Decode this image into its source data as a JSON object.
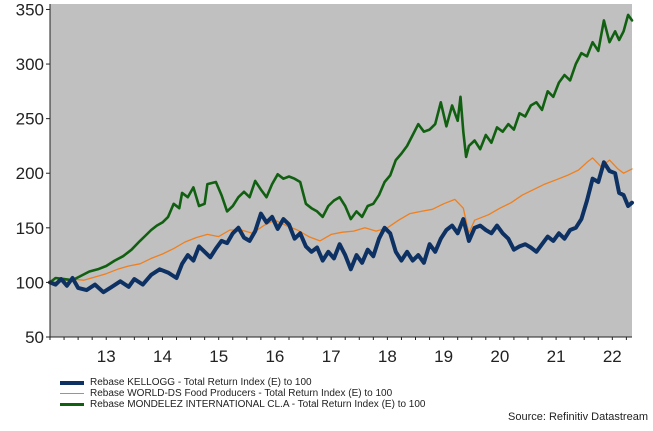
{
  "chart_data": {
    "type": "line",
    "title": "",
    "xlabel": "",
    "ylabel": "",
    "x_tick_labels": [
      "13",
      "14",
      "15",
      "16",
      "17",
      "18",
      "19",
      "20",
      "21",
      "22"
    ],
    "x_tick_values": [
      2013,
      2014,
      2015,
      2016,
      2017,
      2018,
      2019,
      2020,
      2021,
      2022
    ],
    "xlim": [
      2012.5,
      2022.85
    ],
    "y_ticks": [
      50,
      100,
      150,
      200,
      250,
      300,
      350
    ],
    "ylim": [
      50,
      355
    ],
    "grid": false,
    "background": "#c0c0c0",
    "legend_position": "bottom-left",
    "series": [
      {
        "name": "Rebase KELLOGG - Total Return Index (E) to 100",
        "color": "#0d3163",
        "width": 4,
        "points": [
          [
            2012.5,
            100
          ],
          [
            2012.6,
            98
          ],
          [
            2012.7,
            103
          ],
          [
            2012.8,
            97
          ],
          [
            2012.9,
            104
          ],
          [
            2013.0,
            95
          ],
          [
            2013.15,
            93
          ],
          [
            2013.3,
            98
          ],
          [
            2013.45,
            91
          ],
          [
            2013.6,
            96
          ],
          [
            2013.75,
            101
          ],
          [
            2013.9,
            96
          ],
          [
            2014.0,
            103
          ],
          [
            2014.15,
            98
          ],
          [
            2014.3,
            107
          ],
          [
            2014.45,
            112
          ],
          [
            2014.6,
            109
          ],
          [
            2014.75,
            104
          ],
          [
            2014.85,
            117
          ],
          [
            2014.95,
            125
          ],
          [
            2015.05,
            120
          ],
          [
            2015.15,
            133
          ],
          [
            2015.25,
            128
          ],
          [
            2015.35,
            123
          ],
          [
            2015.45,
            131
          ],
          [
            2015.55,
            138
          ],
          [
            2015.65,
            136
          ],
          [
            2015.75,
            145
          ],
          [
            2015.85,
            150
          ],
          [
            2015.95,
            141
          ],
          [
            2016.05,
            138
          ],
          [
            2016.15,
            147
          ],
          [
            2016.25,
            163
          ],
          [
            2016.35,
            155
          ],
          [
            2016.45,
            160
          ],
          [
            2016.55,
            149
          ],
          [
            2016.65,
            158
          ],
          [
            2016.75,
            153
          ],
          [
            2016.85,
            140
          ],
          [
            2016.95,
            145
          ],
          [
            2017.05,
            133
          ],
          [
            2017.15,
            128
          ],
          [
            2017.25,
            132
          ],
          [
            2017.35,
            120
          ],
          [
            2017.45,
            128
          ],
          [
            2017.55,
            122
          ],
          [
            2017.65,
            135
          ],
          [
            2017.75,
            125
          ],
          [
            2017.85,
            112
          ],
          [
            2017.95,
            125
          ],
          [
            2018.05,
            118
          ],
          [
            2018.15,
            130
          ],
          [
            2018.25,
            124
          ],
          [
            2018.35,
            140
          ],
          [
            2018.45,
            150
          ],
          [
            2018.55,
            145
          ],
          [
            2018.65,
            128
          ],
          [
            2018.75,
            120
          ],
          [
            2018.85,
            128
          ],
          [
            2018.95,
            120
          ],
          [
            2019.05,
            125
          ],
          [
            2019.15,
            118
          ],
          [
            2019.25,
            135
          ],
          [
            2019.35,
            128
          ],
          [
            2019.45,
            140
          ],
          [
            2019.55,
            148
          ],
          [
            2019.65,
            152
          ],
          [
            2019.75,
            145
          ],
          [
            2019.85,
            158
          ],
          [
            2019.95,
            138
          ],
          [
            2020.05,
            150
          ],
          [
            2020.15,
            152
          ],
          [
            2020.25,
            148
          ],
          [
            2020.35,
            145
          ],
          [
            2020.45,
            152
          ],
          [
            2020.55,
            145
          ],
          [
            2020.65,
            140
          ],
          [
            2020.75,
            130
          ],
          [
            2020.85,
            133
          ],
          [
            2020.95,
            135
          ],
          [
            2021.05,
            132
          ],
          [
            2021.15,
            128
          ],
          [
            2021.25,
            135
          ],
          [
            2021.35,
            142
          ],
          [
            2021.45,
            138
          ],
          [
            2021.55,
            145
          ],
          [
            2021.65,
            140
          ],
          [
            2021.75,
            148
          ],
          [
            2021.85,
            150
          ],
          [
            2021.95,
            158
          ],
          [
            2022.05,
            175
          ],
          [
            2022.15,
            195
          ],
          [
            2022.25,
            192
          ],
          [
            2022.35,
            210
          ],
          [
            2022.45,
            202
          ],
          [
            2022.55,
            200
          ],
          [
            2022.62,
            182
          ],
          [
            2022.7,
            180
          ],
          [
            2022.78,
            170
          ],
          [
            2022.85,
            173
          ]
        ]
      },
      {
        "name": "Rebase WORLD-DS Food Producers - Total Return Index (E) to 100",
        "color": "#f07f1c",
        "width": 1.3,
        "points": [
          [
            2012.5,
            100
          ],
          [
            2012.7,
            101
          ],
          [
            2012.9,
            103
          ],
          [
            2013.1,
            102
          ],
          [
            2013.3,
            105
          ],
          [
            2013.5,
            108
          ],
          [
            2013.7,
            112
          ],
          [
            2013.9,
            115
          ],
          [
            2014.1,
            117
          ],
          [
            2014.3,
            122
          ],
          [
            2014.5,
            126
          ],
          [
            2014.7,
            131
          ],
          [
            2014.9,
            137
          ],
          [
            2015.1,
            141
          ],
          [
            2015.3,
            144
          ],
          [
            2015.5,
            142
          ],
          [
            2015.7,
            148
          ],
          [
            2015.9,
            148
          ],
          [
            2016.1,
            145
          ],
          [
            2016.3,
            152
          ],
          [
            2016.5,
            157
          ],
          [
            2016.7,
            152
          ],
          [
            2016.9,
            148
          ],
          [
            2017.1,
            142
          ],
          [
            2017.3,
            138
          ],
          [
            2017.5,
            144
          ],
          [
            2017.7,
            146
          ],
          [
            2017.9,
            147
          ],
          [
            2018.1,
            150
          ],
          [
            2018.3,
            147
          ],
          [
            2018.5,
            150
          ],
          [
            2018.7,
            157
          ],
          [
            2018.9,
            163
          ],
          [
            2019.1,
            165
          ],
          [
            2019.3,
            167
          ],
          [
            2019.5,
            172
          ],
          [
            2019.7,
            176
          ],
          [
            2019.85,
            168
          ],
          [
            2019.95,
            145
          ],
          [
            2020.05,
            157
          ],
          [
            2020.3,
            162
          ],
          [
            2020.5,
            168
          ],
          [
            2020.7,
            173
          ],
          [
            2020.9,
            180
          ],
          [
            2021.1,
            185
          ],
          [
            2021.3,
            190
          ],
          [
            2021.5,
            194
          ],
          [
            2021.7,
            198
          ],
          [
            2021.9,
            203
          ],
          [
            2022.05,
            210
          ],
          [
            2022.15,
            214
          ],
          [
            2022.3,
            206
          ],
          [
            2022.45,
            212
          ],
          [
            2022.6,
            204
          ],
          [
            2022.7,
            200
          ],
          [
            2022.85,
            204
          ]
        ]
      },
      {
        "name": "Rebase MONDELEZ INTERNATIONAL CL.A - Total Return Index (E) to 100",
        "color": "#116011",
        "width": 2.6,
        "points": [
          [
            2012.5,
            100
          ],
          [
            2012.6,
            104
          ],
          [
            2012.75,
            103
          ],
          [
            2012.9,
            102
          ],
          [
            2013.05,
            106
          ],
          [
            2013.2,
            110
          ],
          [
            2013.35,
            112
          ],
          [
            2013.5,
            115
          ],
          [
            2013.65,
            120
          ],
          [
            2013.8,
            124
          ],
          [
            2013.95,
            130
          ],
          [
            2014.1,
            138
          ],
          [
            2014.2,
            143
          ],
          [
            2014.3,
            148
          ],
          [
            2014.4,
            152
          ],
          [
            2014.5,
            155
          ],
          [
            2014.6,
            160
          ],
          [
            2014.7,
            172
          ],
          [
            2014.8,
            168
          ],
          [
            2014.85,
            182
          ],
          [
            2014.95,
            178
          ],
          [
            2015.05,
            187
          ],
          [
            2015.15,
            170
          ],
          [
            2015.25,
            172
          ],
          [
            2015.3,
            190
          ],
          [
            2015.45,
            192
          ],
          [
            2015.55,
            180
          ],
          [
            2015.65,
            165
          ],
          [
            2015.75,
            170
          ],
          [
            2015.85,
            178
          ],
          [
            2015.95,
            183
          ],
          [
            2016.05,
            178
          ],
          [
            2016.15,
            193
          ],
          [
            2016.25,
            185
          ],
          [
            2016.35,
            178
          ],
          [
            2016.45,
            190
          ],
          [
            2016.55,
            199
          ],
          [
            2016.65,
            195
          ],
          [
            2016.75,
            197
          ],
          [
            2016.85,
            195
          ],
          [
            2016.95,
            192
          ],
          [
            2017.05,
            172
          ],
          [
            2017.15,
            168
          ],
          [
            2017.25,
            165
          ],
          [
            2017.35,
            160
          ],
          [
            2017.45,
            170
          ],
          [
            2017.55,
            175
          ],
          [
            2017.65,
            178
          ],
          [
            2017.75,
            170
          ],
          [
            2017.85,
            158
          ],
          [
            2017.95,
            165
          ],
          [
            2018.05,
            160
          ],
          [
            2018.15,
            170
          ],
          [
            2018.25,
            172
          ],
          [
            2018.35,
            180
          ],
          [
            2018.45,
            192
          ],
          [
            2018.55,
            198
          ],
          [
            2018.65,
            212
          ],
          [
            2018.75,
            218
          ],
          [
            2018.85,
            225
          ],
          [
            2018.95,
            235
          ],
          [
            2019.05,
            245
          ],
          [
            2019.15,
            238
          ],
          [
            2019.25,
            240
          ],
          [
            2019.35,
            245
          ],
          [
            2019.45,
            265
          ],
          [
            2019.55,
            243
          ],
          [
            2019.65,
            262
          ],
          [
            2019.75,
            248
          ],
          [
            2019.8,
            270
          ],
          [
            2019.85,
            238
          ],
          [
            2019.9,
            215
          ],
          [
            2019.95,
            225
          ],
          [
            2020.05,
            230
          ],
          [
            2020.15,
            222
          ],
          [
            2020.25,
            235
          ],
          [
            2020.35,
            228
          ],
          [
            2020.45,
            242
          ],
          [
            2020.55,
            238
          ],
          [
            2020.65,
            245
          ],
          [
            2020.75,
            240
          ],
          [
            2020.85,
            255
          ],
          [
            2020.95,
            252
          ],
          [
            2021.05,
            262
          ],
          [
            2021.15,
            265
          ],
          [
            2021.25,
            258
          ],
          [
            2021.35,
            275
          ],
          [
            2021.45,
            270
          ],
          [
            2021.55,
            283
          ],
          [
            2021.65,
            290
          ],
          [
            2021.75,
            285
          ],
          [
            2021.85,
            300
          ],
          [
            2021.95,
            310
          ],
          [
            2022.05,
            307
          ],
          [
            2022.15,
            320
          ],
          [
            2022.25,
            312
          ],
          [
            2022.35,
            340
          ],
          [
            2022.45,
            320
          ],
          [
            2022.55,
            330
          ],
          [
            2022.62,
            322
          ],
          [
            2022.7,
            330
          ],
          [
            2022.78,
            345
          ],
          [
            2022.85,
            340
          ]
        ]
      }
    ],
    "source": "Source: Refinitiv Datastream"
  }
}
